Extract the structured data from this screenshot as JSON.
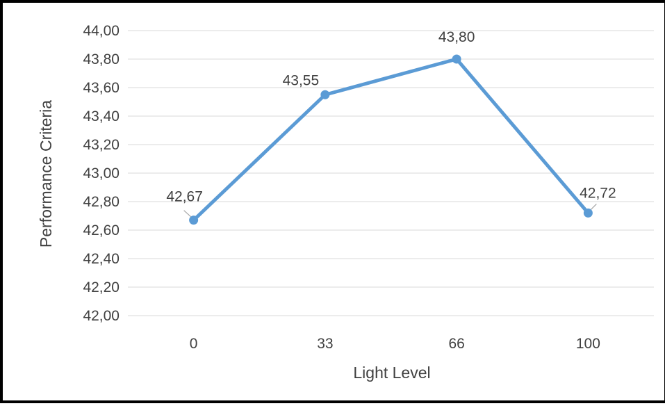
{
  "chart_data": {
    "type": "line",
    "categories": [
      "0",
      "33",
      "66",
      "100"
    ],
    "series": [
      {
        "values": [
          42.67,
          43.55,
          43.8,
          42.72
        ]
      }
    ],
    "data_labels": [
      "42,67",
      "43,55",
      "43,80",
      "42,72"
    ],
    "xlabel": "Light Level",
    "ylabel": "Performance Criteria",
    "ylim": [
      42.0,
      44.0
    ],
    "yticks": [
      42.0,
      42.2,
      42.4,
      42.6,
      42.8,
      43.0,
      43.2,
      43.4,
      43.6,
      43.8,
      44.0
    ],
    "ytick_labels": [
      "42,00",
      "42,20",
      "42,40",
      "42,60",
      "42,80",
      "43,00",
      "43,20",
      "43,40",
      "43,60",
      "43,80",
      "44,00"
    ],
    "grid": "horizontal",
    "legend": "none",
    "line_color": "#5b9bd5",
    "grid_color": "#d9d9d9",
    "text_color": "#404040"
  }
}
